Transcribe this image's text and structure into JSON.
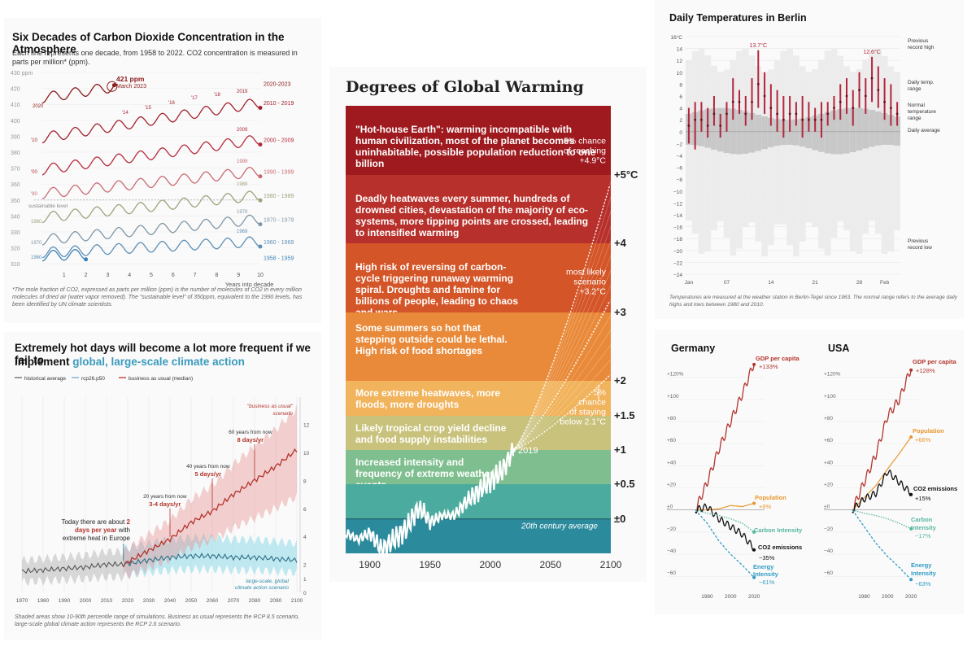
{
  "co2": {
    "title": "Six Decades of Carbon Dioxide Concentration in the Atmosphere",
    "subtitle": "Each line represents one decade, from 1958 to 2022. CO2 concentration is measured in parts per million* (ppm).",
    "note": "*The mole fraction of CO2, expressed as parts per million (ppm) is the number of molecules of CO2 in every million molecules of dried air (water vapor removed). The \"sustainable level\" of 350ppm, equivalent to the 1990 levels, has been identified by UN climate scientists.",
    "yticks": [
      "430 ppm",
      "420",
      "410",
      "400",
      "390",
      "380",
      "370",
      "360",
      "350",
      "340",
      "330",
      "320",
      "310"
    ],
    "xticks": [
      "1",
      "2",
      "3",
      "4",
      "5",
      "6",
      "7",
      "8",
      "9",
      "10"
    ],
    "xlabel": "Years into decade",
    "sustainable": "sustainable level",
    "peak_value": "421 ppm",
    "peak_date": "March 2023",
    "year_labels": [
      "2020",
      "'14",
      "'15",
      "'16",
      "'17",
      "'18",
      "2019",
      "'10",
      "2009",
      "'00",
      "1999",
      "'90",
      "1989",
      "1980",
      "1979",
      "1970",
      "1969",
      "1960"
    ],
    "colors": {
      "d2020": "#8b1a1a",
      "d2010": "#a3202e",
      "d2000": "#b62a3c",
      "d1990": "#c96a72",
      "d1980": "#9aa57c",
      "d1970": "#7f96a6",
      "d1960": "#5b8fb5",
      "d1958": "#3b82b8"
    },
    "chart_data": {
      "type": "line",
      "title": "Six Decades of Carbon Dioxide Concentration in the Atmosphere",
      "xlabel": "Years into decade",
      "ylabel": "ppm",
      "ylim": [
        305,
        430
      ],
      "xlim": [
        0,
        10
      ],
      "series": [
        {
          "name": "2020-2023",
          "start": 414,
          "end": 421,
          "years": 3.3
        },
        {
          "name": "2010 - 2019",
          "start": 389,
          "end": 411,
          "years": 10
        },
        {
          "name": "2000 - 2009",
          "start": 369,
          "end": 388,
          "years": 10
        },
        {
          "name": "1990 - 1999",
          "start": 354,
          "end": 368,
          "years": 10
        },
        {
          "name": "1980 - 1989",
          "start": 339,
          "end": 353,
          "years": 10
        },
        {
          "name": "1970 - 1979",
          "start": 325,
          "end": 338,
          "years": 10
        },
        {
          "name": "1960 - 1969",
          "start": 317,
          "end": 324,
          "years": 10
        },
        {
          "name": "1958 - 1959",
          "start": 315,
          "end": 316,
          "years": 2
        }
      ]
    }
  },
  "hot": {
    "title_1": "Extremely hot days will become a lot more frequent if we fail to",
    "title_2a": "implement ",
    "title_2b": "global, large-scale climate action",
    "legend": [
      "historical average",
      "rcp26.p50",
      "business as usual (median)"
    ],
    "ann_today_1": "Today there are about ",
    "ann_today_2": "2",
    "ann_today_3": "days per year",
    "ann_today_4": " with",
    "ann_today_5": "extreme heat in Europe",
    "ann_20": "20 years from now",
    "ann_20v": "3-4 days/yr",
    "ann_40": "40 years from now",
    "ann_40v": "5 days/yr",
    "ann_60": "60 years from now",
    "ann_60v": "8 days/yr",
    "bau_1": "\"business as usual\"",
    "bau_2": "scenario",
    "global_1": "large-scale, global",
    "global_2": "climate action scenario",
    "note": "Shaded areas show 10-90th percentile range of simulations. Business as usual represents the RCP 8.5 scenario, large-scale global climate action represents the RCP 2.6 scenario.",
    "yticks": [
      "12",
      "10",
      "8",
      "6",
      "4",
      "2",
      "1",
      "0"
    ],
    "xticks": [
      "1970",
      "1980",
      "1990",
      "2000",
      "2010",
      "2020",
      "2030",
      "2040",
      "2050",
      "2060",
      "2070",
      "2080",
      "2090",
      "2100"
    ],
    "chart_data": {
      "type": "line",
      "title": "Extremely hot days will become a lot more frequent if we fail to implement global, large-scale climate action",
      "xlim": [
        1970,
        2100
      ],
      "ylim": [
        0,
        12
      ],
      "series": [
        {
          "name": "historical average",
          "x": [
            1970,
            1980,
            1990,
            2000,
            2010,
            2018
          ],
          "values": [
            1.5,
            1.6,
            1.7,
            1.8,
            2.0,
            2.0
          ]
        },
        {
          "name": "rcp26.p50",
          "x": [
            2018,
            2030,
            2040,
            2050,
            2060,
            2070,
            2080,
            2090,
            2100
          ],
          "values": [
            2.0,
            2.3,
            2.5,
            2.6,
            2.6,
            2.5,
            2.5,
            2.4,
            2.3
          ]
        },
        {
          "name": "business as usual (median)",
          "x": [
            2018,
            2030,
            2040,
            2050,
            2060,
            2070,
            2080,
            2090,
            2100
          ],
          "values": [
            2.0,
            3.0,
            3.8,
            5.0,
            5.8,
            7.0,
            8.0,
            9.0,
            10.2
          ]
        }
      ]
    }
  },
  "gw": {
    "title": "Degrees of Global Warming",
    "bands": [
      {
        "text": "\"Hot-house Earth\": warming incompatible with human civilization, most of the planet becomes uninhabitable, possible population reduction to one billion",
        "color": "#9e1a1f"
      },
      {
        "text": "Deadly heatwaves every summer, hundreds of drowned cities, devastation of the majority of eco-systems, more tipping points are crossed, leading to intensified warming",
        "color": "#b8302b"
      },
      {
        "text": "High risk of reversing of carbon-cycle triggering runaway warming spiral. Droughts and famine for billions of people, leading to chaos and wars",
        "color": "#d45527"
      },
      {
        "text": "Some summers so hot that stepping outside could be lethal. High risk of food shortages",
        "color": "#e98a3a"
      },
      {
        "text": "More extreme heatwaves, more floods, more droughts",
        "color": "#f1b35c"
      },
      {
        "text": "Likely tropical crop yield decline and food supply instabilities",
        "color": "#c9c27c"
      },
      {
        "text": "Increased intensity and frequency of extreme weather events",
        "color": "#7fbf8f"
      },
      {
        "text": "",
        "color": "#4bab9e"
      },
      {
        "text": "",
        "color": "#2b8b9d"
      }
    ],
    "levels": [
      "+5°C",
      "+4",
      "+3",
      "+2",
      "+1.5",
      "+1",
      "+0.5",
      "±0"
    ],
    "ann_5": [
      "5% chance",
      "of reaching",
      "+4.9°C"
    ],
    "ann_likely": [
      "most likely",
      "scenario",
      "+3.2°C"
    ],
    "ann_low": [
      "5%",
      "chance",
      "of staying",
      "below 2.1°C"
    ],
    "ann_2019": "2019",
    "ann_avg": "20th century average",
    "xticks": [
      "1900",
      "1950",
      "2000",
      "2050",
      "2100"
    ],
    "chart_data": {
      "type": "line",
      "title": "Degrees of Global Warming",
      "xlim": [
        1880,
        2100
      ],
      "ylim": [
        -0.5,
        6
      ],
      "series": [
        {
          "name": "observed",
          "x": [
            1880,
            1890,
            1900,
            1910,
            1920,
            1930,
            1940,
            1945,
            1950,
            1960,
            1970,
            1980,
            1990,
            2000,
            2010,
            2019
          ],
          "values": [
            -0.2,
            -0.3,
            -0.2,
            -0.45,
            -0.3,
            -0.15,
            0.15,
            0.1,
            -0.05,
            0.05,
            0.05,
            0.25,
            0.4,
            0.55,
            0.7,
            1.0
          ]
        },
        {
          "name": "5% chance of reaching +4.9°C",
          "x": [
            2019,
            2100
          ],
          "values": [
            1.0,
            4.9
          ]
        },
        {
          "name": "most likely scenario +3.2°C",
          "x": [
            2019,
            2100
          ],
          "values": [
            1.0,
            3.2
          ]
        },
        {
          "name": "5% chance of staying below 2.1°C",
          "x": [
            2019,
            2100
          ],
          "values": [
            1.0,
            2.1
          ]
        }
      ]
    }
  },
  "berlin": {
    "title": "Daily Temperatures in Berlin",
    "note": "Temperatures are measured at the weather station in Berlin-Tegel since 1963. The normal range refers to the average daily highs and lows between 1980 and 2010.",
    "yticks": [
      "16°C",
      "14",
      "12",
      "10",
      "8",
      "6",
      "4",
      "2",
      "0",
      "−2",
      "−4",
      "−6",
      "−8",
      "−10",
      "−12",
      "−14",
      "−16",
      "−18",
      "−20",
      "−22",
      "−24"
    ],
    "xticks": [
      "Jan",
      "07",
      "14",
      "21",
      "28",
      "Feb"
    ],
    "max1": "13.7°C",
    "max2": "12.6°C",
    "legend": [
      "Previous record high",
      "Daily temp. range",
      "Normal temperature range",
      "Daily average",
      "Previous record low"
    ],
    "chart_data": {
      "type": "bar",
      "title": "Daily Temperatures in Berlin",
      "ylim": [
        -24,
        16
      ],
      "days": [
        "Jan 1",
        "Jan 2",
        "Jan 3",
        "Jan 4",
        "Jan 5",
        "Jan 6",
        "Jan 7",
        "Jan 8",
        "Jan 9",
        "Jan 10",
        "Jan 11",
        "Jan 12",
        "Jan 13",
        "Jan 14",
        "Jan 15",
        "Jan 16",
        "Jan 17",
        "Jan 18",
        "Jan 19",
        "Jan 20",
        "Jan 21",
        "Jan 22",
        "Jan 23",
        "Jan 24",
        "Jan 25",
        "Jan 26",
        "Jan 27",
        "Jan 28",
        "Jan 29",
        "Jan 30",
        "Jan 31",
        "Feb 1",
        "Feb 2",
        "Feb 3"
      ],
      "highs": [
        4,
        5,
        5,
        4,
        6,
        3,
        5,
        9,
        7,
        6,
        9,
        13.7,
        10,
        8,
        7,
        6,
        6,
        5,
        6,
        5,
        4,
        5,
        5,
        6,
        8,
        9,
        7,
        10,
        9,
        12.6,
        11,
        9,
        8,
        5
      ],
      "lows": [
        -2,
        -3,
        0,
        -1,
        1,
        -1,
        0,
        2,
        3,
        1,
        2,
        4,
        3,
        1,
        0,
        -1,
        0,
        1,
        -1,
        0,
        0,
        -1,
        1,
        2,
        2,
        3,
        1,
        4,
        3,
        5,
        4,
        2,
        1,
        1
      ],
      "means": [
        1,
        2,
        2,
        1,
        3,
        1,
        3,
        5,
        5,
        3,
        5,
        8,
        6,
        4,
        3,
        2,
        3,
        3,
        2,
        2,
        2,
        2,
        3,
        4,
        5,
        6,
        4,
        7,
        6,
        9,
        7,
        5,
        4,
        3
      ]
    }
  },
  "gdp": {
    "titles": [
      "Germany",
      "USA"
    ],
    "yticks": [
      "+120%",
      "+100",
      "+80",
      "+60",
      "+40",
      "+20",
      "±0",
      "−20",
      "−40",
      "−60"
    ],
    "xticks": [
      "1980",
      "2000",
      "2020"
    ],
    "de": {
      "gdp": "GDP per capita",
      "gdp_v": "+133%",
      "pop": "Population",
      "pop_v": "+6%",
      "ci": "Carbon Intensity",
      "co2": "CO2 emissions",
      "co2_v": "−35%",
      "ei_1": "Energy",
      "ei_2": "Intensity",
      "ei_v": "−61%"
    },
    "us": {
      "gdp": "GDP per capita",
      "gdp_v": "+128%",
      "pop": "Population",
      "pop_v": "+66%",
      "co2": "CO2 emissions",
      "co2_v": "+15%",
      "ci_1": "Carbon",
      "ci_2": "Intensity",
      "ci_v": "−17%",
      "ei_1": "Energy",
      "ei_2": "Intensity",
      "ei_v": "−63%"
    },
    "colors": {
      "gdp": "#b3342c",
      "pop": "#e8962f",
      "co2": "#111111",
      "ci": "#56b6a0",
      "ei": "#2f9cc4"
    },
    "chart_data": [
      {
        "type": "line",
        "title": "Germany",
        "xlim": [
          1970,
          2022
        ],
        "ylim": [
          -65,
          130
        ],
        "series": [
          {
            "name": "GDP per capita",
            "x": [
              1970,
              1980,
              1990,
              2000,
              2010,
              2020
            ],
            "values": [
              0,
              25,
              55,
              80,
              105,
              133
            ]
          },
          {
            "name": "Population",
            "x": [
              1970,
              1980,
              1990,
              2000,
              2010,
              2020
            ],
            "values": [
              0,
              0,
              1,
              4,
              3,
              6
            ]
          },
          {
            "name": "CO2 emissions",
            "x": [
              1970,
              1980,
              1990,
              2000,
              2010,
              2020
            ],
            "values": [
              0,
              3,
              -8,
              -15,
              -22,
              -35
            ]
          },
          {
            "name": "Carbon Intensity",
            "x": [
              1970,
              1980,
              1990,
              2000,
              2010,
              2020
            ],
            "values": [
              0,
              -3,
              -5,
              -8,
              -12,
              -20
            ]
          },
          {
            "name": "Energy Intensity",
            "x": [
              1970,
              1980,
              1990,
              2000,
              2010,
              2020
            ],
            "values": [
              0,
              -12,
              -28,
              -40,
              -50,
              -61
            ]
          }
        ]
      },
      {
        "type": "line",
        "title": "USA",
        "xlim": [
          1970,
          2022
        ],
        "ylim": [
          -65,
          130
        ],
        "series": [
          {
            "name": "GDP per capita",
            "x": [
              1970,
              1980,
              1990,
              2000,
              2010,
              2020
            ],
            "values": [
              0,
              25,
              50,
              85,
              100,
              128
            ]
          },
          {
            "name": "Population",
            "x": [
              1970,
              1980,
              1990,
              2000,
              2010,
              2020
            ],
            "values": [
              0,
              11,
              22,
              37,
              51,
              66
            ]
          },
          {
            "name": "CO2 emissions",
            "x": [
              1970,
              1980,
              1990,
              2000,
              2010,
              2020
            ],
            "values": [
              0,
              10,
              15,
              35,
              25,
              15
            ]
          },
          {
            "name": "Carbon Intensity",
            "x": [
              1970,
              1980,
              1990,
              2000,
              2010,
              2020
            ],
            "values": [
              0,
              -3,
              -5,
              -8,
              -12,
              -17
            ]
          },
          {
            "name": "Energy Intensity",
            "x": [
              1970,
              1980,
              1990,
              2000,
              2010,
              2020
            ],
            "values": [
              0,
              -15,
              -30,
              -42,
              -52,
              -63
            ]
          }
        ]
      }
    ]
  }
}
